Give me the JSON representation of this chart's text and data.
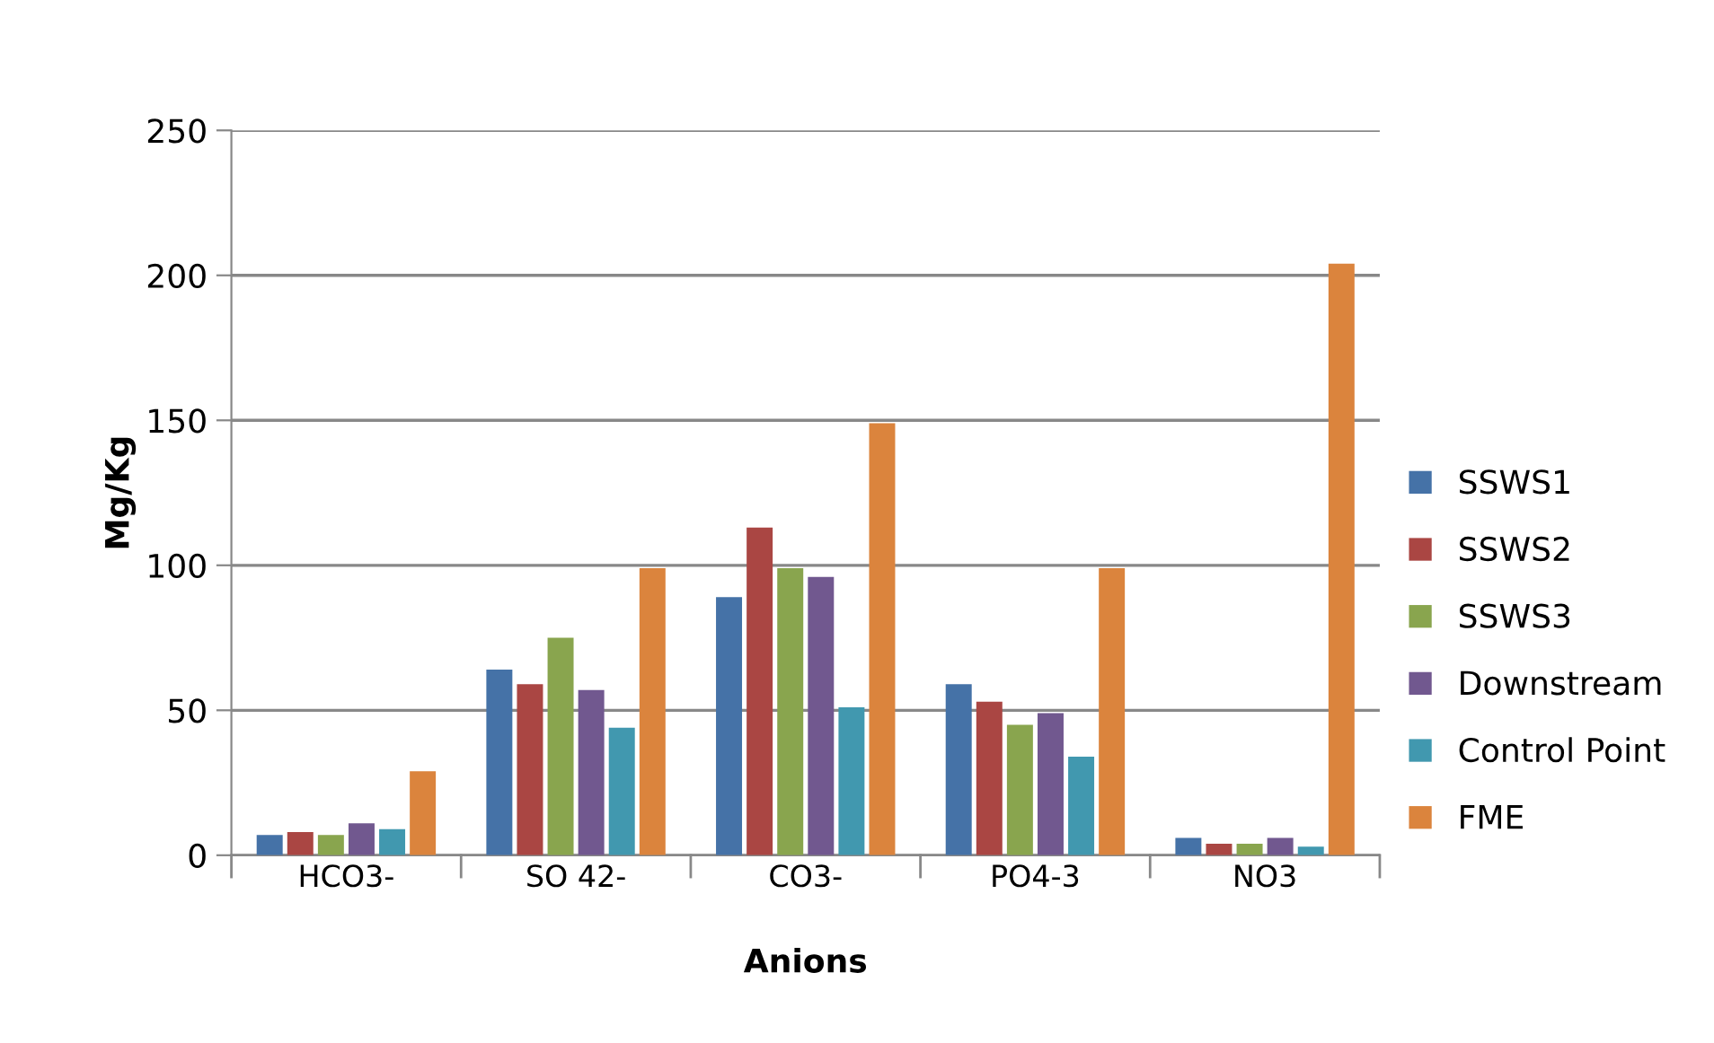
{
  "chart_data": {
    "type": "bar",
    "xlabel": "Anions",
    "ylabel": "Mg/Kg",
    "categories": [
      "HCO3-",
      "SO 42-",
      "CO3-",
      "PO4-3",
      "NO3"
    ],
    "series": [
      {
        "name": "SSWS1",
        "color": "#4572a7",
        "values": [
          7,
          64,
          89,
          59,
          6
        ]
      },
      {
        "name": "SSWS2",
        "color": "#aa4643",
        "values": [
          8,
          59,
          113,
          53,
          4
        ]
      },
      {
        "name": "SSWS3",
        "color": "#89a54e",
        "values": [
          7,
          75,
          99,
          45,
          4
        ]
      },
      {
        "name": "Downstream",
        "color": "#71588f",
        "values": [
          11,
          57,
          96,
          49,
          6
        ]
      },
      {
        "name": "Control Point",
        "color": "#4198af",
        "values": [
          9,
          44,
          51,
          34,
          3
        ]
      },
      {
        "name": "FME",
        "color": "#db843d",
        "values": [
          29,
          99,
          149,
          99,
          204
        ]
      }
    ],
    "ylim": [
      0,
      250
    ],
    "yticks": [
      0,
      50,
      100,
      150,
      200,
      250
    ],
    "grid": "y",
    "legend": "right"
  }
}
